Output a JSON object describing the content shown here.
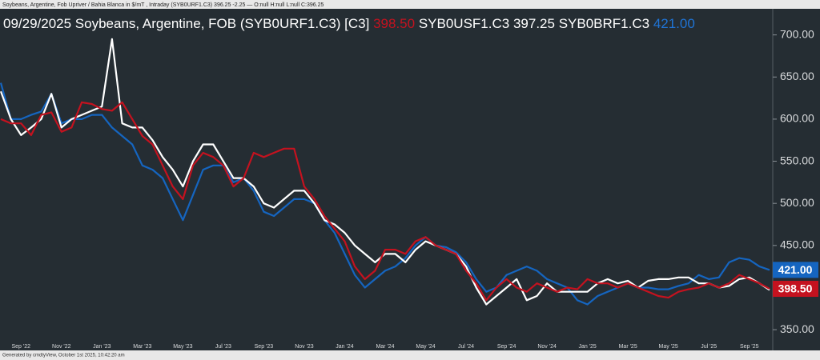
{
  "chart_data": {
    "type": "line",
    "top_caption": "Soybeans, Argentine, Fob Upriver / Bahia Blanca in $/mT , Intraday (SYB0URF1.C3) 396.25 -2.25 — O:null H:null L:null C:396.25",
    "title": "09/29/2025 Soybeans, Argentine, FOB (SYB0URF1.C3) [C3]",
    "footer": "Generated by cmdtyView, October 1st 2025, 10:42:20 am",
    "categories": [
      null,
      null,
      "Sep '22",
      null,
      null,
      null,
      "Nov '22",
      null,
      null,
      null,
      "Jan '23",
      null,
      null,
      null,
      "Mar '23",
      null,
      null,
      null,
      "May '23",
      null,
      null,
      null,
      "Jul '23",
      null,
      null,
      null,
      "Sep '23",
      null,
      null,
      null,
      "Nov '23",
      null,
      null,
      null,
      "Jan '24",
      null,
      null,
      null,
      "Mar '24",
      null,
      null,
      null,
      "May '24",
      null,
      null,
      null,
      "Jul '24",
      null,
      null,
      null,
      "Sep '24",
      null,
      null,
      null,
      "Nov '24",
      null,
      null,
      null,
      "Jan '25",
      null,
      null,
      null,
      "Mar '25",
      null,
      null,
      null,
      "May '25",
      null,
      null,
      null,
      "Jul '25",
      null,
      null,
      null,
      "Sep '25",
      null,
      null
    ],
    "series": [
      {
        "color": "#c4121f",
        "last_label": "398.50",
        "values": [
          600,
          595,
          595,
          581,
          605,
          608,
          585,
          590,
          620,
          618,
          612,
          610,
          620,
          600,
          580,
          570,
          545,
          520,
          505,
          545,
          560,
          555,
          545,
          520,
          530,
          560,
          555,
          560,
          565,
          565,
          520,
          505,
          485,
          470,
          455,
          425,
          410,
          420,
          445,
          445,
          440,
          455,
          460,
          450,
          445,
          440,
          420,
          405,
          385,
          400,
          410,
          400,
          395,
          405,
          400,
          395,
          400,
          398,
          410,
          405,
          405,
          400,
          405,
          400,
          395,
          390,
          388,
          395,
          398,
          400,
          405,
          400,
          405,
          415,
          410,
          405,
          398.5
        ]
      },
      {
        "name": "SYB0USF1.C3",
        "color": "#ffffff",
        "last_label": "397.25",
        "values": [
          633,
          600,
          581,
          590,
          600,
          630,
          590,
          600,
          605,
          610,
          615,
          695,
          595,
          590,
          590,
          575,
          555,
          540,
          520,
          550,
          570,
          570,
          550,
          530,
          530,
          520,
          500,
          495,
          505,
          515,
          515,
          500,
          480,
          475,
          465,
          450,
          440,
          430,
          440,
          440,
          430,
          445,
          455,
          450,
          445,
          440,
          425,
          400,
          380,
          390,
          400,
          410,
          385,
          390,
          405,
          395,
          395,
          395,
          395,
          405,
          410,
          405,
          408,
          400,
          408,
          410,
          410,
          412,
          412,
          405,
          405,
          400,
          402,
          410,
          412,
          405,
          397.25
        ]
      },
      {
        "name": "SYB0BRF1.C3",
        "color": "#1565c0",
        "last_label": "421.00",
        "values": [
          643,
          600,
          600,
          605,
          609,
          630,
          595,
          600,
          600,
          605,
          605,
          590,
          580,
          570,
          545,
          540,
          530,
          505,
          480,
          510,
          540,
          545,
          545,
          525,
          530,
          515,
          490,
          485,
          495,
          505,
          505,
          500,
          480,
          465,
          440,
          415,
          400,
          410,
          420,
          425,
          435,
          450,
          460,
          450,
          448,
          442,
          430,
          410,
          395,
          400,
          415,
          420,
          425,
          420,
          410,
          405,
          400,
          385,
          380,
          390,
          395,
          400,
          405,
          400,
          400,
          398,
          398,
          402,
          405,
          415,
          410,
          412,
          430,
          435,
          433,
          425,
          421
        ]
      }
    ],
    "ylim": [
      333,
      731
    ],
    "yticks": [
      {
        "value": 350,
        "label": "350.00"
      },
      {
        "value": 400,
        "label": "400.00"
      },
      {
        "value": 450,
        "label": "450.00"
      },
      {
        "value": 500,
        "label": "500.00"
      },
      {
        "value": 550,
        "label": "550.00"
      },
      {
        "value": 600,
        "label": "600.00"
      },
      {
        "value": 650,
        "label": "650.00"
      },
      {
        "value": 700,
        "label": "700.00"
      }
    ],
    "grid": false
  }
}
